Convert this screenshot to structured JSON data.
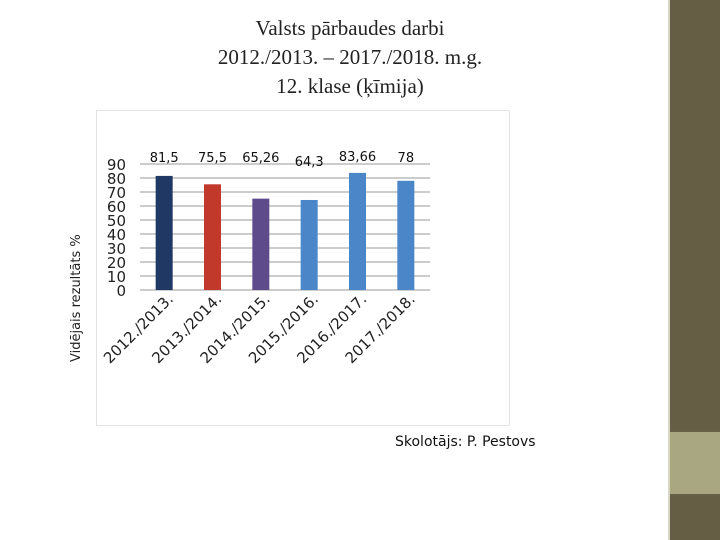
{
  "title_lines": [
    "Valsts pārbaudes darbi",
    "2012./2013. – 2017./2018. m.g.",
    "12. klase (ķīmija)"
  ],
  "footer": "Skolotājs: P. Pestovs",
  "chart_data": {
    "type": "bar",
    "title": "",
    "ylabel": "Vidējais rezultāts %",
    "xlabel": "",
    "ylim": [
      0,
      90
    ],
    "yticks": [
      0,
      10,
      20,
      30,
      40,
      50,
      60,
      70,
      80,
      90
    ],
    "grid": true,
    "categories": [
      "2012./2013.",
      "2013./2014.",
      "2014./2015.",
      "2015./2016.",
      "2016./2017.",
      "2017./2018."
    ],
    "values": [
      81.5,
      75.5,
      65.26,
      64.3,
      83.66,
      78
    ],
    "data_labels": [
      "81,5",
      "75,5",
      "65,26",
      "64,3",
      "83,66",
      "78"
    ],
    "bar_colors": [
      "#1f3864",
      "#c0392b",
      "#5e4b8b",
      "#4a86c8",
      "#4a86c8",
      "#4a86c8"
    ]
  }
}
